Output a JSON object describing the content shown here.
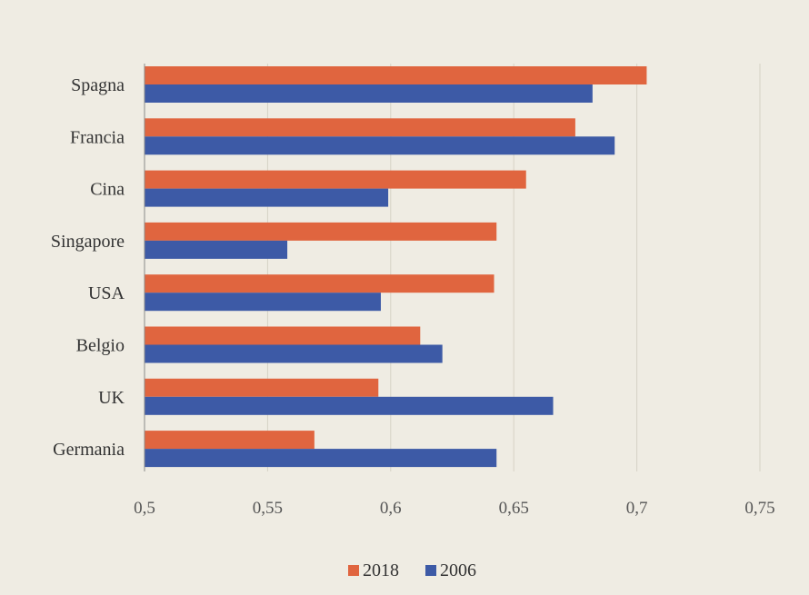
{
  "chart_data": {
    "type": "bar",
    "orientation": "horizontal",
    "categories": [
      "Spagna",
      "Francia",
      "Cina",
      "Singapore",
      "USA",
      "Belgio",
      "UK",
      "Germania"
    ],
    "series": [
      {
        "name": "2018",
        "color": "#e0653f",
        "values": [
          0.704,
          0.675,
          0.655,
          0.643,
          0.642,
          0.612,
          0.595,
          0.569
        ]
      },
      {
        "name": "2006",
        "color": "#3d5aa6",
        "values": [
          0.682,
          0.691,
          0.599,
          0.558,
          0.596,
          0.621,
          0.666,
          0.643
        ]
      }
    ],
    "xlim": [
      0.5,
      0.75
    ],
    "xticks": [
      0.5,
      0.55,
      0.6,
      0.65,
      0.7,
      0.75
    ],
    "xtick_labels": [
      "0,5",
      "0,55",
      "0,6",
      "0,65",
      "0,7",
      "0,75"
    ],
    "grid": "vertical",
    "legend_position": "bottom",
    "title": "",
    "xlabel": "",
    "ylabel": ""
  }
}
